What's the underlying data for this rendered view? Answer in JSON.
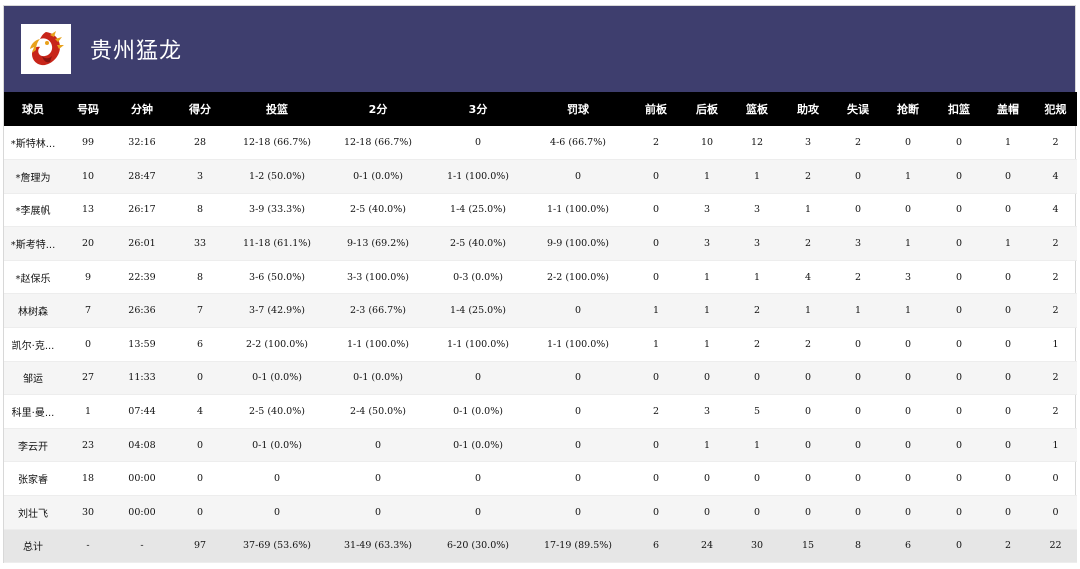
{
  "team": {
    "name": "贵州猛龙",
    "logo_icon": "dragon-logo-icon"
  },
  "columns": [
    "球员",
    "号码",
    "分钟",
    "得分",
    "投篮",
    "2分",
    "3分",
    "罚球",
    "前板",
    "后板",
    "篮板",
    "助攻",
    "失误",
    "抢断",
    "扣篮",
    "盖帽",
    "犯规"
  ],
  "rows": [
    [
      "*斯特林...",
      "99",
      "32:16",
      "28",
      "12-18 (66.7%)",
      "12-18 (66.7%)",
      "0",
      "4-6 (66.7%)",
      "2",
      "10",
      "12",
      "3",
      "2",
      "0",
      "0",
      "1",
      "2"
    ],
    [
      "*詹理为",
      "10",
      "28:47",
      "3",
      "1-2 (50.0%)",
      "0-1 (0.0%)",
      "1-1 (100.0%)",
      "0",
      "0",
      "1",
      "1",
      "2",
      "0",
      "1",
      "0",
      "0",
      "4"
    ],
    [
      "*李展帆",
      "13",
      "26:17",
      "8",
      "3-9 (33.3%)",
      "2-5 (40.0%)",
      "1-4 (25.0%)",
      "1-1 (100.0%)",
      "0",
      "3",
      "3",
      "1",
      "0",
      "0",
      "0",
      "0",
      "4"
    ],
    [
      "*斯考特...",
      "20",
      "26:01",
      "33",
      "11-18 (61.1%)",
      "9-13 (69.2%)",
      "2-5 (40.0%)",
      "9-9 (100.0%)",
      "0",
      "3",
      "3",
      "2",
      "3",
      "1",
      "0",
      "1",
      "2"
    ],
    [
      "*赵保乐",
      "9",
      "22:39",
      "8",
      "3-6 (50.0%)",
      "3-3 (100.0%)",
      "0-3 (0.0%)",
      "2-2 (100.0%)",
      "0",
      "1",
      "1",
      "4",
      "2",
      "3",
      "0",
      "0",
      "2"
    ],
    [
      "林树森",
      "7",
      "26:36",
      "7",
      "3-7 (42.9%)",
      "2-3 (66.7%)",
      "1-4 (25.0%)",
      "0",
      "1",
      "1",
      "2",
      "1",
      "1",
      "1",
      "0",
      "0",
      "2"
    ],
    [
      "凯尔·克...",
      "0",
      "13:59",
      "6",
      "2-2 (100.0%)",
      "1-1 (100.0%)",
      "1-1 (100.0%)",
      "1-1 (100.0%)",
      "1",
      "1",
      "2",
      "2",
      "0",
      "0",
      "0",
      "0",
      "1"
    ],
    [
      "邹运",
      "27",
      "11:33",
      "0",
      "0-1 (0.0%)",
      "0-1 (0.0%)",
      "0",
      "0",
      "0",
      "0",
      "0",
      "0",
      "0",
      "0",
      "0",
      "0",
      "2"
    ],
    [
      "科里·曼...",
      "1",
      "07:44",
      "4",
      "2-5 (40.0%)",
      "2-4 (50.0%)",
      "0-1 (0.0%)",
      "0",
      "2",
      "3",
      "5",
      "0",
      "0",
      "0",
      "0",
      "0",
      "2"
    ],
    [
      "李云开",
      "23",
      "04:08",
      "0",
      "0-1 (0.0%)",
      "0",
      "0-1 (0.0%)",
      "0",
      "0",
      "1",
      "1",
      "0",
      "0",
      "0",
      "0",
      "0",
      "1"
    ],
    [
      "张家睿",
      "18",
      "00:00",
      "0",
      "0",
      "0",
      "0",
      "0",
      "0",
      "0",
      "0",
      "0",
      "0",
      "0",
      "0",
      "0",
      "0"
    ],
    [
      "刘壮飞",
      "30",
      "00:00",
      "0",
      "0",
      "0",
      "0",
      "0",
      "0",
      "0",
      "0",
      "0",
      "0",
      "0",
      "0",
      "0",
      "0"
    ]
  ],
  "total": [
    "总计",
    "-",
    "-",
    "97",
    "37-69 (53.6%)",
    "31-49 (63.3%)",
    "6-20 (30.0%)",
    "17-19 (89.5%)",
    "6",
    "24",
    "30",
    "15",
    "8",
    "6",
    "0",
    "2",
    "22"
  ],
  "colors": {
    "header_bg": "#3e3e6e",
    "table_head_bg": "#000000",
    "stripe": "#f5f5f5",
    "total_bg": "#e6e6e6",
    "logo_red": "#c8251a",
    "logo_gold": "#e8a21c"
  }
}
